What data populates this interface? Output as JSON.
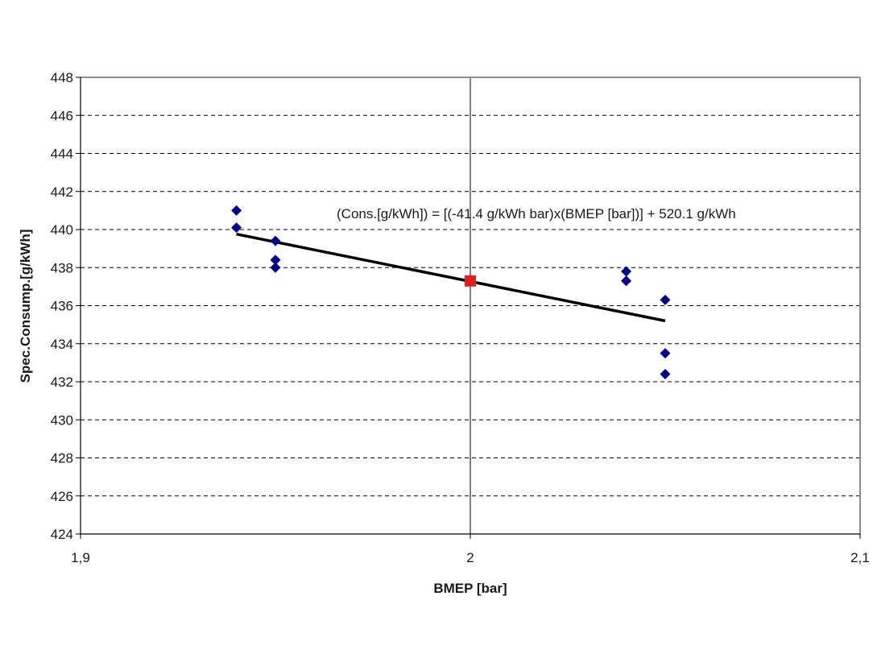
{
  "chart_data": {
    "type": "scatter",
    "title": "",
    "xlabel": "BMEP [bar]",
    "ylabel": "Spec.Consump.[g/kWh]",
    "xlim": [
      1.9,
      2.1
    ],
    "ylim": [
      424,
      448
    ],
    "x_ticks": [
      1.9,
      2.0,
      2.1
    ],
    "x_tick_labels": [
      "1,9",
      "2",
      "2,1"
    ],
    "y_ticks": [
      424,
      426,
      428,
      430,
      432,
      434,
      436,
      438,
      440,
      442,
      444,
      446,
      448
    ],
    "y_tick_labels": [
      "424",
      "426",
      "428",
      "430",
      "432",
      "434",
      "436",
      "438",
      "440",
      "442",
      "444",
      "446",
      "448"
    ],
    "grid": "horizontal dashed",
    "legend": "none",
    "series": [
      {
        "marker": "diamond",
        "color": "#00008b",
        "points": [
          {
            "x": 1.94,
            "y": 441.0
          },
          {
            "x": 1.94,
            "y": 440.1
          },
          {
            "x": 1.95,
            "y": 439.4
          },
          {
            "x": 1.95,
            "y": 438.4
          },
          {
            "x": 1.95,
            "y": 438.0
          },
          {
            "x": 2.04,
            "y": 437.8
          },
          {
            "x": 2.04,
            "y": 437.3
          },
          {
            "x": 2.05,
            "y": 436.3
          },
          {
            "x": 2.05,
            "y": 433.5
          },
          {
            "x": 2.05,
            "y": 432.4
          }
        ]
      },
      {
        "marker": "square",
        "color": "#e02020",
        "points": [
          {
            "x": 2.0,
            "y": 437.3
          }
        ]
      }
    ],
    "trendline": {
      "color": "#000000",
      "points": [
        {
          "x": 1.94,
          "y": 439.76
        },
        {
          "x": 2.05,
          "y": 435.2
        }
      ]
    },
    "annotation": "(Cons.[g/kWh]) = [(-41.4 g/kWh bar)x(BMEP [bar])] + 520.1 g/kWh"
  }
}
